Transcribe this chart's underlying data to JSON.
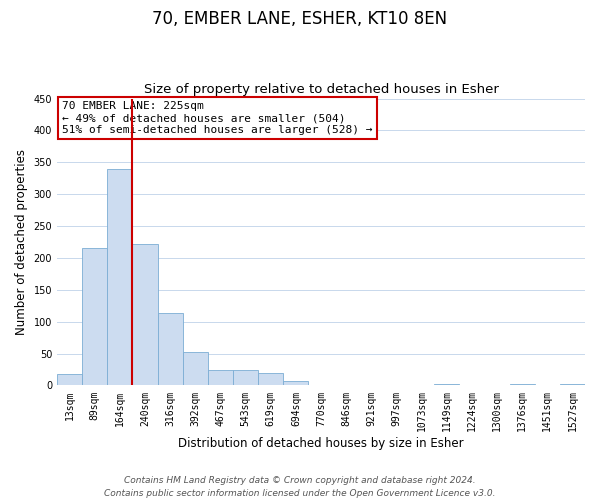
{
  "title": "70, EMBER LANE, ESHER, KT10 8EN",
  "subtitle": "Size of property relative to detached houses in Esher",
  "xlabel": "Distribution of detached houses by size in Esher",
  "ylabel": "Number of detached properties",
  "bar_values": [
    18,
    215,
    340,
    222,
    113,
    53,
    25,
    24,
    20,
    7,
    0,
    0,
    0,
    0,
    0,
    2,
    0,
    0,
    2,
    0,
    2
  ],
  "bar_labels": [
    "13sqm",
    "89sqm",
    "164sqm",
    "240sqm",
    "316sqm",
    "392sqm",
    "467sqm",
    "543sqm",
    "619sqm",
    "694sqm",
    "770sqm",
    "846sqm",
    "921sqm",
    "997sqm",
    "1073sqm",
    "1149sqm",
    "1224sqm",
    "1300sqm",
    "1376sqm",
    "1451sqm",
    "1527sqm"
  ],
  "bar_color": "#ccdcf0",
  "bar_edge_color": "#7badd4",
  "vline_x_index": 2.5,
  "vline_color": "#cc0000",
  "annotation_line1": "70 EMBER LANE: 225sqm",
  "annotation_line2": "← 49% of detached houses are smaller (504)",
  "annotation_line3": "51% of semi-detached houses are larger (528) →",
  "ylim": [
    0,
    450
  ],
  "yticks": [
    0,
    50,
    100,
    150,
    200,
    250,
    300,
    350,
    400,
    450
  ],
  "footer_text": "Contains HM Land Registry data © Crown copyright and database right 2024.\nContains public sector information licensed under the Open Government Licence v3.0.",
  "background_color": "#ffffff",
  "grid_color": "#c8d8ec",
  "title_fontsize": 12,
  "subtitle_fontsize": 9.5,
  "axis_label_fontsize": 8.5,
  "tick_fontsize": 7,
  "annotation_fontsize": 8,
  "footer_fontsize": 6.5
}
